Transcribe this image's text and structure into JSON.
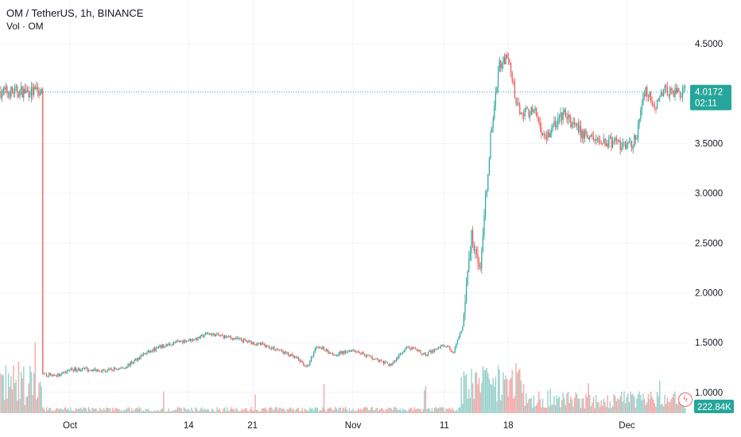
{
  "legend": {
    "title": "OM / TetherUS, 1h, BINANCE",
    "volume_label": "Vol · OM"
  },
  "colors": {
    "up": "#26a69a",
    "down": "#ef5350",
    "volume_up": "#9bd1cb",
    "volume_down": "#f5a7a6",
    "grid": "#f0f3fa",
    "price_line": "#26a69a"
  },
  "icons": {
    "alert": "lightning-bolt-icon"
  },
  "price_tag": {
    "value": "4.0172",
    "countdown": "02:11"
  },
  "volume_tag": {
    "value": "222.84K"
  },
  "chart_data": {
    "type": "candlestick",
    "symbol": "OM / TetherUS",
    "interval": "1h",
    "exchange": "BINANCE",
    "y_ticks": [
      "4.5000",
      "4.0000",
      "3.5000",
      "3.0000",
      "2.5000",
      "2.0000",
      "1.5000",
      "1.0000"
    ],
    "x_ticks": [
      "Oct",
      "14",
      "21",
      "Nov",
      "11",
      "18",
      "Dec"
    ],
    "grid": true,
    "last_price": 4.0172,
    "volume_last": "222.84K",
    "series": [
      {
        "values": [
          {
            "t": "Sep 27",
            "p": 1.18
          },
          {
            "t": "Sep 29",
            "p": 1.17
          },
          {
            "t": "Oct 1",
            "p": 1.23
          },
          {
            "t": "Oct 3",
            "p": 1.23
          },
          {
            "t": "Oct 5",
            "p": 1.22
          },
          {
            "t": "Oct 7",
            "p": 1.25
          },
          {
            "t": "Oct 9",
            "p": 1.38
          },
          {
            "t": "Oct 11",
            "p": 1.46
          },
          {
            "t": "Oct 13",
            "p": 1.51
          },
          {
            "t": "Oct 15",
            "p": 1.54
          },
          {
            "t": "Oct 16",
            "p": 1.59
          },
          {
            "t": "Oct 18",
            "p": 1.56
          },
          {
            "t": "Oct 20",
            "p": 1.52
          },
          {
            "t": "Oct 22",
            "p": 1.48
          },
          {
            "t": "Oct 24",
            "p": 1.42
          },
          {
            "t": "Oct 26",
            "p": 1.33
          },
          {
            "t": "Oct 27",
            "p": 1.25
          },
          {
            "t": "Oct 28",
            "p": 1.47
          },
          {
            "t": "Oct 30",
            "p": 1.38
          },
          {
            "t": "Nov 1",
            "p": 1.43
          },
          {
            "t": "Nov 3",
            "p": 1.35
          },
          {
            "t": "Nov 5",
            "p": 1.27
          },
          {
            "t": "Nov 7",
            "p": 1.45
          },
          {
            "t": "Nov 9",
            "p": 1.38
          },
          {
            "t": "Nov 11",
            "p": 1.48
          },
          {
            "t": "Nov 12",
            "p": 1.4
          },
          {
            "t": "Nov 13",
            "p": 1.65
          },
          {
            "t": "Nov 14",
            "p": 2.6
          },
          {
            "t": "Nov 15",
            "p": 2.25
          },
          {
            "t": "Nov 16",
            "p": 3.5
          },
          {
            "t": "Nov 17",
            "p": 4.3
          },
          {
            "t": "Nov 18",
            "p": 4.35
          },
          {
            "t": "Nov 19",
            "p": 3.85
          },
          {
            "t": "Nov 21",
            "p": 3.8
          },
          {
            "t": "Nov 22",
            "p": 3.55
          },
          {
            "t": "Nov 24",
            "p": 3.8
          },
          {
            "t": "Nov 26",
            "p": 3.6
          },
          {
            "t": "Nov 28",
            "p": 3.52
          },
          {
            "t": "Nov 30",
            "p": 3.5
          },
          {
            "t": "Dec 1",
            "p": 3.45
          },
          {
            "t": "Dec 2",
            "p": 3.55
          },
          {
            "t": "Dec 3",
            "p": 4.05
          },
          {
            "t": "Dec 4",
            "p": 3.85
          },
          {
            "t": "Dec 5",
            "p": 4.02
          }
        ]
      }
    ]
  }
}
